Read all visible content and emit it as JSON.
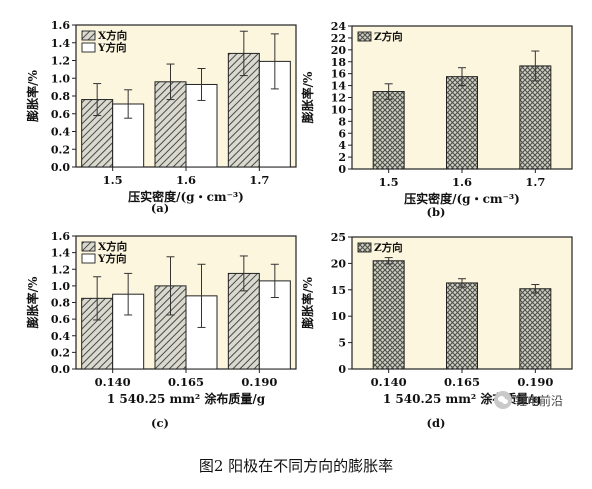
{
  "chart_data": [
    {
      "type": "bar",
      "panel_label": "(a)",
      "xlabel": "压实密度/(g・cm⁻³)",
      "ylabel": "膨胀率/%",
      "categories": [
        "1.5",
        "1.6",
        "1.7"
      ],
      "ylim": [
        0,
        1.6
      ],
      "yticks": [
        "0.0",
        "0.2",
        "0.4",
        "0.6",
        "0.8",
        "1.0",
        "1.2",
        "1.4",
        "1.6"
      ],
      "legend_position": "top-left",
      "series": [
        {
          "name": "X方向",
          "values": [
            0.76,
            0.96,
            1.28
          ],
          "errors": [
            0.18,
            0.2,
            0.25
          ],
          "pattern": "hatch"
        },
        {
          "name": "Y方向",
          "values": [
            0.71,
            0.93,
            1.19
          ],
          "errors": [
            0.16,
            0.18,
            0.31
          ],
          "pattern": "white"
        }
      ]
    },
    {
      "type": "bar",
      "panel_label": "(b)",
      "xlabel": "压实密度/(g・cm⁻³)",
      "ylabel": "膨胀率/%",
      "categories": [
        "1.5",
        "1.6",
        "1.7"
      ],
      "ylim": [
        0,
        24
      ],
      "yticks": [
        "0",
        "2",
        "4",
        "6",
        "8",
        "10",
        "12",
        "14",
        "16",
        "18",
        "20",
        "22",
        "24"
      ],
      "legend_position": "top-left",
      "series": [
        {
          "name": "Z方向",
          "values": [
            13.0,
            15.5,
            17.3
          ],
          "errors": [
            1.3,
            1.5,
            2.5
          ],
          "pattern": "cross"
        }
      ]
    },
    {
      "type": "bar",
      "panel_label": "(c)",
      "xlabel": "1 540.25 mm² 涂布质量/g",
      "ylabel": "膨胀率/%",
      "categories": [
        "0.140",
        "0.165",
        "0.190"
      ],
      "ylim": [
        0,
        1.6
      ],
      "yticks": [
        "0.0",
        "0.2",
        "0.4",
        "0.6",
        "0.8",
        "1.0",
        "1.2",
        "1.4",
        "1.6"
      ],
      "legend_position": "top-left",
      "series": [
        {
          "name": "X方向",
          "values": [
            0.85,
            1.0,
            1.15
          ],
          "errors": [
            0.26,
            0.35,
            0.21
          ],
          "pattern": "hatch"
        },
        {
          "name": "Y方向",
          "values": [
            0.9,
            0.88,
            1.06
          ],
          "errors": [
            0.25,
            0.38,
            0.2
          ],
          "pattern": "white"
        }
      ]
    },
    {
      "type": "bar",
      "panel_label": "(d)",
      "xlabel": "1 540.25 mm² 涂布质量/g",
      "ylabel": "膨胀率/%",
      "categories": [
        "0.140",
        "0.165",
        "0.190"
      ],
      "ylim": [
        0,
        25
      ],
      "yticks": [
        "0",
        "5",
        "10",
        "15",
        "20",
        "25"
      ],
      "legend_position": "top-left",
      "series": [
        {
          "name": "Z方向",
          "values": [
            20.5,
            16.3,
            15.2
          ],
          "errors": [
            0.6,
            0.8,
            0.8
          ],
          "pattern": "cross"
        }
      ]
    }
  ],
  "caption": "图2 阳极在不同方向的膨胀率",
  "watermark": "锂电前沿"
}
